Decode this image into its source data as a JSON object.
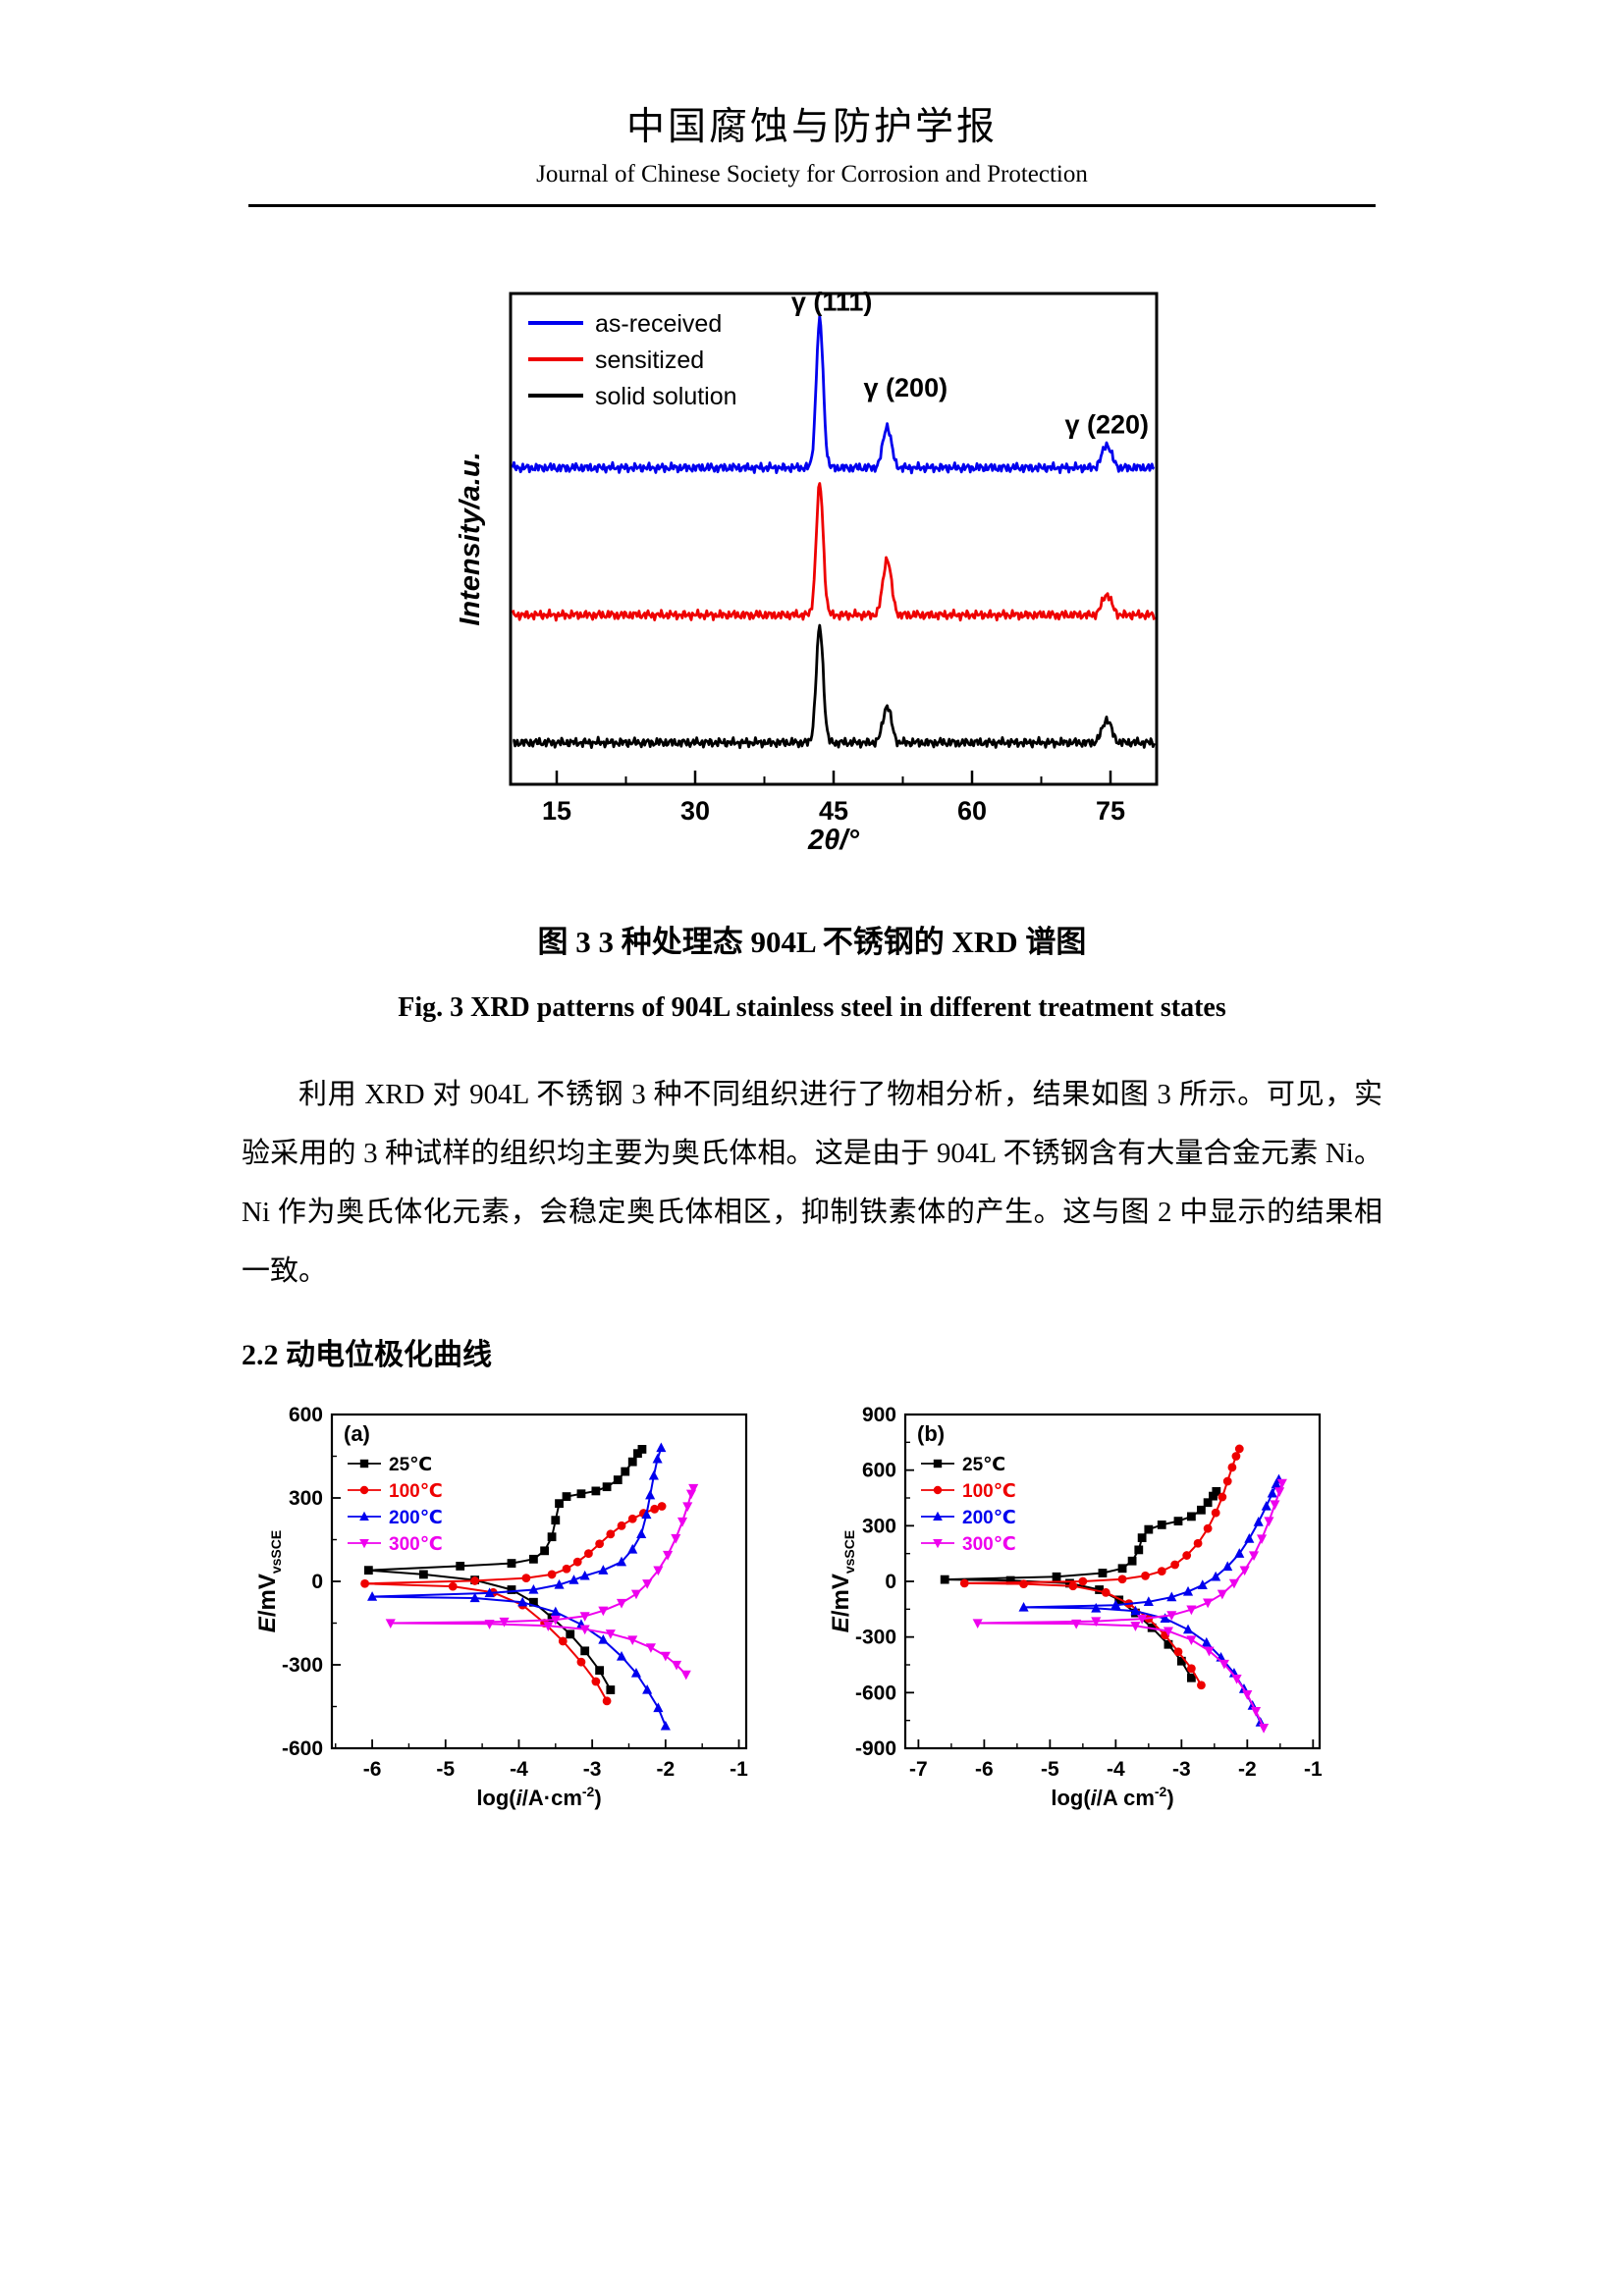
{
  "header": {
    "journal_title_cn": "中国腐蚀与防护学报",
    "journal_title_en": "Journal of Chinese Society for Corrosion and Protection"
  },
  "figure3": {
    "caption_cn": "图 3 3 种处理态 904L 不锈钢的 XRD 谱图",
    "caption_en": "Fig. 3 XRD patterns of 904L stainless steel in different treatment states"
  },
  "body": {
    "paragraph1": "利用 XRD 对 904L 不锈钢 3 种不同组织进行了物相分析，结果如图 3 所示。可见，实验采用的 3 种试样的组织均主要为奥氏体相。这是由于 904L 不锈钢含有大量合金元素 Ni。Ni 作为奥氏体化元素，会稳定奥氏体相区，抑制铁素体的产生。这与图 2 中显示的结果相一致。"
  },
  "sections": {
    "s22_heading": "2.2 动电位极化曲线"
  },
  "colors": {
    "blue": "#0000ee",
    "red": "#ee0000",
    "black": "#000000",
    "magenta": "#ee00ee"
  },
  "chart_data": [
    {
      "id": "xrd",
      "type": "line",
      "subtype": "xrd",
      "title": "",
      "xlabel": "2θ/°",
      "ylabel": "Intensity/a.u.",
      "xlim": [
        10,
        80
      ],
      "xticks": [
        15,
        30,
        45,
        60,
        75
      ],
      "xminor": [
        22.5,
        37.5,
        52.5,
        67.5
      ],
      "legend_position": "top-left",
      "peak_labels": [
        {
          "text": "γ (111)",
          "x": 44.8,
          "yfrac": 0.965
        },
        {
          "text": "γ (200)",
          "x": 52.8,
          "yfrac": 0.79
        },
        {
          "text": "γ (220)",
          "x": 74.6,
          "yfrac": 0.715
        }
      ],
      "series": [
        {
          "name": "as-received",
          "color": "#0000ee",
          "baseline": 0.645,
          "peaks": [
            {
              "x": 43.5,
              "h": 0.3,
              "w": 0.38
            },
            {
              "x": 50.8,
              "h": 0.085,
              "w": 0.45
            },
            {
              "x": 74.6,
              "h": 0.047,
              "w": 0.5
            }
          ]
        },
        {
          "name": "sensitized",
          "color": "#ee0000",
          "baseline": 0.345,
          "peaks": [
            {
              "x": 43.5,
              "h": 0.265,
              "w": 0.38
            },
            {
              "x": 50.8,
              "h": 0.115,
              "w": 0.45
            },
            {
              "x": 74.6,
              "h": 0.042,
              "w": 0.5
            }
          ]
        },
        {
          "name": "solid solution",
          "color": "#000000",
          "baseline": 0.085,
          "peaks": [
            {
              "x": 43.5,
              "h": 0.235,
              "w": 0.38
            },
            {
              "x": 50.8,
              "h": 0.075,
              "w": 0.45
            },
            {
              "x": 74.6,
              "h": 0.047,
              "w": 0.5
            }
          ]
        }
      ]
    },
    {
      "id": "pol_a",
      "type": "line",
      "subtype": "polarization",
      "panel": "(a)",
      "xlabel": {
        "pre": "log(",
        "var": "i",
        "mid": "/A·cm",
        "sup": "-2",
        "post": ")"
      },
      "ylabel": {
        "var": "E",
        "unit": "/mV",
        "sub": "vsSCE"
      },
      "xlim": [
        -6.55,
        -0.9
      ],
      "ylim": [
        -600,
        600
      ],
      "xticks": [
        -6,
        -5,
        -4,
        -3,
        -2,
        -1
      ],
      "yticks": [
        -600,
        -300,
        0,
        300,
        600
      ],
      "series": [
        {
          "name": "25℃",
          "color": "#000000",
          "marker": "square",
          "points": [
            [
              -2.75,
              -390
            ],
            [
              -2.9,
              -320
            ],
            [
              -3.1,
              -250
            ],
            [
              -3.3,
              -190
            ],
            [
              -3.55,
              -130
            ],
            [
              -3.8,
              -75
            ],
            [
              -4.1,
              -30
            ],
            [
              -4.6,
              5
            ],
            [
              -5.3,
              25
            ],
            [
              -6.05,
              40
            ],
            [
              -4.8,
              55
            ],
            [
              -4.1,
              65
            ],
            [
              -3.8,
              80
            ],
            [
              -3.65,
              110
            ],
            [
              -3.55,
              160
            ],
            [
              -3.5,
              220
            ],
            [
              -3.45,
              280
            ],
            [
              -3.35,
              305
            ],
            [
              -3.15,
              315
            ],
            [
              -2.95,
              325
            ],
            [
              -2.8,
              340
            ],
            [
              -2.65,
              365
            ],
            [
              -2.55,
              395
            ],
            [
              -2.45,
              430
            ],
            [
              -2.38,
              460
            ],
            [
              -2.32,
              475
            ]
          ]
        },
        {
          "name": "100℃",
          "color": "#ee0000",
          "marker": "circle",
          "points": [
            [
              -2.8,
              -430
            ],
            [
              -2.95,
              -360
            ],
            [
              -3.15,
              -290
            ],
            [
              -3.4,
              -215
            ],
            [
              -3.65,
              -150
            ],
            [
              -3.95,
              -85
            ],
            [
              -4.35,
              -40
            ],
            [
              -4.9,
              -18
            ],
            [
              -6.1,
              -8
            ],
            [
              -4.6,
              2
            ],
            [
              -3.9,
              12
            ],
            [
              -3.55,
              25
            ],
            [
              -3.35,
              45
            ],
            [
              -3.2,
              70
            ],
            [
              -3.05,
              100
            ],
            [
              -2.9,
              135
            ],
            [
              -2.75,
              170
            ],
            [
              -2.6,
              200
            ],
            [
              -2.45,
              225
            ],
            [
              -2.3,
              245
            ],
            [
              -2.15,
              260
            ],
            [
              -2.05,
              270
            ]
          ]
        },
        {
          "name": "200℃",
          "color": "#0000ee",
          "marker": "triangle-up",
          "points": [
            [
              -2.0,
              -520
            ],
            [
              -2.1,
              -455
            ],
            [
              -2.25,
              -390
            ],
            [
              -2.4,
              -330
            ],
            [
              -2.6,
              -270
            ],
            [
              -2.85,
              -210
            ],
            [
              -3.15,
              -155
            ],
            [
              -3.5,
              -110
            ],
            [
              -3.95,
              -75
            ],
            [
              -4.6,
              -60
            ],
            [
              -6.0,
              -55
            ],
            [
              -4.4,
              -42
            ],
            [
              -3.8,
              -30
            ],
            [
              -3.45,
              -12
            ],
            [
              -3.25,
              5
            ],
            [
              -3.1,
              20
            ],
            [
              -2.85,
              40
            ],
            [
              -2.6,
              70
            ],
            [
              -2.45,
              115
            ],
            [
              -2.33,
              170
            ],
            [
              -2.26,
              240
            ],
            [
              -2.21,
              310
            ],
            [
              -2.16,
              380
            ],
            [
              -2.11,
              440
            ],
            [
              -2.06,
              480
            ]
          ]
        },
        {
          "name": "300℃",
          "color": "#ee00ee",
          "marker": "triangle-down",
          "points": [
            [
              -1.72,
              -335
            ],
            [
              -1.85,
              -300
            ],
            [
              -2.0,
              -268
            ],
            [
              -2.2,
              -238
            ],
            [
              -2.45,
              -210
            ],
            [
              -2.75,
              -188
            ],
            [
              -3.1,
              -172
            ],
            [
              -3.6,
              -160
            ],
            [
              -4.4,
              -153
            ],
            [
              -5.75,
              -150
            ],
            [
              -4.2,
              -145
            ],
            [
              -3.5,
              -138
            ],
            [
              -3.1,
              -125
            ],
            [
              -2.85,
              -105
            ],
            [
              -2.6,
              -78
            ],
            [
              -2.4,
              -45
            ],
            [
              -2.25,
              -8
            ],
            [
              -2.1,
              40
            ],
            [
              -1.97,
              95
            ],
            [
              -1.86,
              155
            ],
            [
              -1.77,
              215
            ],
            [
              -1.7,
              270
            ],
            [
              -1.65,
              315
            ],
            [
              -1.62,
              335
            ]
          ]
        }
      ]
    },
    {
      "id": "pol_b",
      "type": "line",
      "subtype": "polarization",
      "panel": "(b)",
      "xlabel": {
        "pre": "log(",
        "var": "i",
        "mid": "/A cm",
        "sup": "-2",
        "post": ")"
      },
      "ylabel": {
        "var": "E",
        "unit": "/mV",
        "sub": "vsSCE"
      },
      "xlim": [
        -7.2,
        -0.9
      ],
      "ylim": [
        -900,
        900
      ],
      "xticks": [
        -7,
        -6,
        -5,
        -4,
        -3,
        -2,
        -1
      ],
      "yticks": [
        -900,
        -600,
        -300,
        0,
        300,
        600,
        900
      ],
      "series": [
        {
          "name": "25℃",
          "color": "#000000",
          "marker": "square",
          "points": [
            [
              -2.85,
              -520
            ],
            [
              -3.0,
              -430
            ],
            [
              -3.2,
              -340
            ],
            [
              -3.45,
              -250
            ],
            [
              -3.7,
              -170
            ],
            [
              -3.95,
              -100
            ],
            [
              -4.25,
              -45
            ],
            [
              -4.7,
              -10
            ],
            [
              -5.6,
              5
            ],
            [
              -6.6,
              10
            ],
            [
              -4.9,
              25
            ],
            [
              -4.2,
              45
            ],
            [
              -3.9,
              70
            ],
            [
              -3.75,
              110
            ],
            [
              -3.65,
              170
            ],
            [
              -3.6,
              235
            ],
            [
              -3.5,
              280
            ],
            [
              -3.3,
              305
            ],
            [
              -3.05,
              325
            ],
            [
              -2.85,
              350
            ],
            [
              -2.7,
              385
            ],
            [
              -2.6,
              425
            ],
            [
              -2.52,
              460
            ],
            [
              -2.47,
              485
            ]
          ]
        },
        {
          "name": "100℃",
          "color": "#ee0000",
          "marker": "circle",
          "points": [
            [
              -2.7,
              -560
            ],
            [
              -2.85,
              -470
            ],
            [
              -3.05,
              -380
            ],
            [
              -3.25,
              -290
            ],
            [
              -3.5,
              -200
            ],
            [
              -3.8,
              -120
            ],
            [
              -4.15,
              -60
            ],
            [
              -4.65,
              -25
            ],
            [
              -5.4,
              -14
            ],
            [
              -6.3,
              -10
            ],
            [
              -4.5,
              0
            ],
            [
              -3.9,
              12
            ],
            [
              -3.55,
              30
            ],
            [
              -3.3,
              55
            ],
            [
              -3.1,
              90
            ],
            [
              -2.92,
              140
            ],
            [
              -2.75,
              205
            ],
            [
              -2.6,
              285
            ],
            [
              -2.48,
              370
            ],
            [
              -2.38,
              455
            ],
            [
              -2.3,
              540
            ],
            [
              -2.23,
              615
            ],
            [
              -2.17,
              675
            ],
            [
              -2.12,
              715
            ]
          ]
        },
        {
          "name": "200℃",
          "color": "#0000ee",
          "marker": "triangle-up",
          "points": [
            [
              -1.8,
              -760
            ],
            [
              -1.92,
              -670
            ],
            [
              -2.05,
              -580
            ],
            [
              -2.2,
              -495
            ],
            [
              -2.4,
              -410
            ],
            [
              -2.62,
              -330
            ],
            [
              -2.9,
              -260
            ],
            [
              -3.25,
              -200
            ],
            [
              -3.7,
              -160
            ],
            [
              -4.3,
              -145
            ],
            [
              -5.4,
              -140
            ],
            [
              -4.0,
              -128
            ],
            [
              -3.5,
              -110
            ],
            [
              -3.15,
              -85
            ],
            [
              -2.9,
              -55
            ],
            [
              -2.68,
              -20
            ],
            [
              -2.48,
              25
            ],
            [
              -2.3,
              80
            ],
            [
              -2.12,
              150
            ],
            [
              -1.97,
              230
            ],
            [
              -1.83,
              320
            ],
            [
              -1.71,
              405
            ],
            [
              -1.62,
              475
            ],
            [
              -1.56,
              525
            ],
            [
              -1.52,
              550
            ]
          ]
        },
        {
          "name": "300℃",
          "color": "#ee00ee",
          "marker": "triangle-down",
          "points": [
            [
              -1.75,
              -790
            ],
            [
              -1.87,
              -700
            ],
            [
              -2.0,
              -610
            ],
            [
              -2.16,
              -525
            ],
            [
              -2.35,
              -445
            ],
            [
              -2.58,
              -375
            ],
            [
              -2.85,
              -315
            ],
            [
              -3.2,
              -268
            ],
            [
              -3.7,
              -240
            ],
            [
              -4.6,
              -228
            ],
            [
              -6.1,
              -225
            ],
            [
              -4.3,
              -215
            ],
            [
              -3.6,
              -202
            ],
            [
              -3.15,
              -182
            ],
            [
              -2.85,
              -152
            ],
            [
              -2.6,
              -115
            ],
            [
              -2.38,
              -68
            ],
            [
              -2.2,
              -10
            ],
            [
              -2.04,
              60
            ],
            [
              -1.9,
              140
            ],
            [
              -1.78,
              230
            ],
            [
              -1.67,
              325
            ],
            [
              -1.58,
              415
            ],
            [
              -1.51,
              485
            ],
            [
              -1.47,
              530
            ]
          ]
        }
      ]
    }
  ]
}
